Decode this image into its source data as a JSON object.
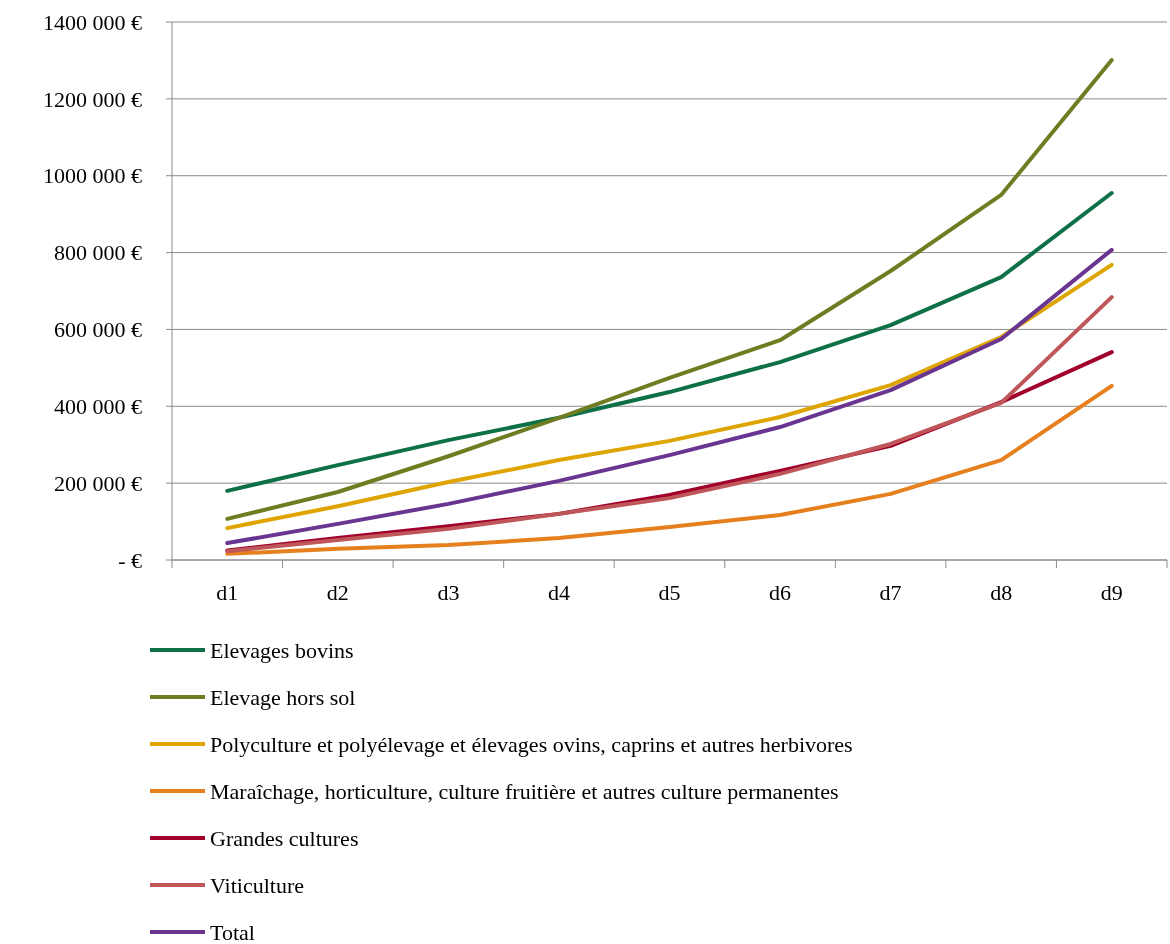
{
  "chart_data": {
    "type": "line",
    "categories": [
      "d1",
      "d2",
      "d3",
      "d4",
      "d5",
      "d6",
      "d7",
      "d8",
      "d9"
    ],
    "series": [
      {
        "name": "Elevages bovins",
        "color": "#0e7046",
        "values": [
          180000,
          247000,
          312000,
          370000,
          437000,
          515000,
          611000,
          736000,
          955000
        ]
      },
      {
        "name": "Elevage hors sol",
        "color": "#6f7d22",
        "values": [
          107000,
          177000,
          270000,
          370000,
          474000,
          572000,
          752000,
          950000,
          1301000
        ]
      },
      {
        "name": "Polyculture et polyélevage et élevages ovins, caprins et autres herbivores",
        "color": "#dea400",
        "values": [
          83000,
          140000,
          203000,
          260000,
          310000,
          372000,
          455000,
          580000,
          768000
        ]
      },
      {
        "name": "Maraîchage, horticulture, culture fruitière et autres culture permanentes",
        "color": "#e6801e",
        "values": [
          16000,
          29000,
          39000,
          57000,
          86000,
          117000,
          172000,
          260000,
          453000
        ]
      },
      {
        "name": "Grandes cultures",
        "color": "#a0002a",
        "values": [
          25000,
          57000,
          88000,
          120000,
          169000,
          232000,
          297000,
          411000,
          541000
        ]
      },
      {
        "name": "Viticulture",
        "color": "#bf5659",
        "values": [
          23000,
          52000,
          81000,
          120000,
          161000,
          224000,
          302000,
          409000,
          684000
        ]
      },
      {
        "name": "Total",
        "color": "#6a3591",
        "values": [
          44000,
          94000,
          146000,
          206000,
          273000,
          346000,
          442000,
          575000,
          807000
        ]
      }
    ],
    "ylim": [
      0,
      1400000
    ],
    "yticks": [
      {
        "value": 0,
        "label": "-  €"
      },
      {
        "value": 200000,
        "label": "200 000 €"
      },
      {
        "value": 400000,
        "label": "400 000 €"
      },
      {
        "value": 600000,
        "label": "600 000 €"
      },
      {
        "value": 800000,
        "label": "800 000 €"
      },
      {
        "value": 1000000,
        "label": "1000 000 €"
      },
      {
        "value": 1200000,
        "label": "1200 000 €"
      },
      {
        "value": 1400000,
        "label": "1400 000 €"
      }
    ],
    "grid": "y",
    "legend": "bottom",
    "marker": "none",
    "line_style": "solid"
  }
}
